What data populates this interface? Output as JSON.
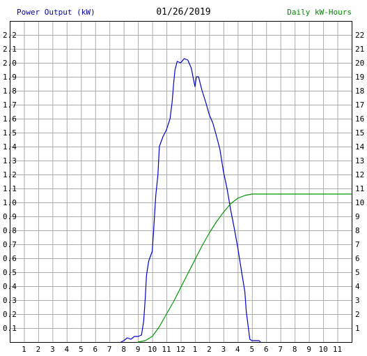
{
  "chart_data": {
    "type": "line",
    "title": "01/26/2019",
    "left_axis_label": "Power Output (kW)",
    "right_axis_label": "Daily kW-Hours",
    "left_axis": {
      "ylim": [
        0,
        2.3
      ],
      "ticks": [
        "0.1",
        "0.2",
        "0.3",
        "0.4",
        "0.5",
        "0.6",
        "0.7",
        "0.8",
        "0.9",
        "1.0",
        "1.1",
        "1.2",
        "1.3",
        "1.4",
        "1.5",
        "1.6",
        "1.7",
        "1.8",
        "1.9",
        "2.0",
        "2.1",
        "2.2"
      ]
    },
    "right_axis": {
      "ylim": [
        0,
        23
      ],
      "ticks": [
        "1",
        "2",
        "3",
        "4",
        "5",
        "6",
        "7",
        "8",
        "9",
        "10",
        "11",
        "12",
        "13",
        "14",
        "15",
        "16",
        "17",
        "18",
        "19",
        "20",
        "21",
        "22"
      ]
    },
    "x_axis": {
      "xlim": [
        0,
        24
      ],
      "tick_labels": [
        "1",
        "2",
        "3",
        "4",
        "5",
        "6",
        "7",
        "8",
        "9",
        "10",
        "11",
        "12",
        "1",
        "2",
        "3",
        "4",
        "5",
        "6",
        "7",
        "8",
        "9",
        "10",
        "11"
      ]
    },
    "grid": true,
    "series": [
      {
        "axis": "left",
        "color": "#0000cc",
        "points": [
          [
            7.8,
            0
          ],
          [
            8.0,
            0.01
          ],
          [
            8.25,
            0.03
          ],
          [
            8.5,
            0.02
          ],
          [
            8.75,
            0.04
          ],
          [
            9.0,
            0.04
          ],
          [
            9.25,
            0.05
          ],
          [
            9.4,
            0.15
          ],
          [
            9.5,
            0.3
          ],
          [
            9.6,
            0.48
          ],
          [
            9.75,
            0.58
          ],
          [
            10.0,
            0.65
          ],
          [
            10.1,
            0.8
          ],
          [
            10.25,
            1.05
          ],
          [
            10.4,
            1.2
          ],
          [
            10.5,
            1.4
          ],
          [
            10.75,
            1.47
          ],
          [
            11.0,
            1.52
          ],
          [
            11.25,
            1.6
          ],
          [
            11.4,
            1.72
          ],
          [
            11.5,
            1.85
          ],
          [
            11.6,
            1.95
          ],
          [
            11.75,
            2.01
          ],
          [
            12.0,
            2.0
          ],
          [
            12.25,
            2.03
          ],
          [
            12.5,
            2.02
          ],
          [
            12.75,
            1.96
          ],
          [
            12.9,
            1.88
          ],
          [
            13.0,
            1.83
          ],
          [
            13.1,
            1.9
          ],
          [
            13.25,
            1.9
          ],
          [
            13.4,
            1.84
          ],
          [
            13.5,
            1.8
          ],
          [
            13.75,
            1.72
          ],
          [
            14.0,
            1.63
          ],
          [
            14.25,
            1.57
          ],
          [
            14.5,
            1.48
          ],
          [
            14.75,
            1.38
          ],
          [
            15.0,
            1.22
          ],
          [
            15.25,
            1.1
          ],
          [
            15.5,
            0.95
          ],
          [
            15.75,
            0.82
          ],
          [
            16.0,
            0.68
          ],
          [
            16.25,
            0.52
          ],
          [
            16.5,
            0.36
          ],
          [
            16.6,
            0.22
          ],
          [
            16.75,
            0.1
          ],
          [
            16.85,
            0.02
          ],
          [
            17.0,
            0.01
          ],
          [
            17.5,
            0.01
          ],
          [
            17.6,
            0
          ]
        ]
      },
      {
        "axis": "right",
        "color": "#009900",
        "points": [
          [
            9.0,
            0
          ],
          [
            9.5,
            0.1
          ],
          [
            10.0,
            0.4
          ],
          [
            10.5,
            1.1
          ],
          [
            11.0,
            2.0
          ],
          [
            11.5,
            2.9
          ],
          [
            12.0,
            3.9
          ],
          [
            12.5,
            4.9
          ],
          [
            13.0,
            5.9
          ],
          [
            13.5,
            6.9
          ],
          [
            14.0,
            7.8
          ],
          [
            14.5,
            8.6
          ],
          [
            15.0,
            9.3
          ],
          [
            15.5,
            9.9
          ],
          [
            16.0,
            10.3
          ],
          [
            16.5,
            10.5
          ],
          [
            17.0,
            10.6
          ],
          [
            24.0,
            10.6
          ]
        ]
      }
    ]
  },
  "colors": {
    "left_label": "#0000aa",
    "right_label": "#008800",
    "title": "#000000",
    "grid": "#aaaaaa",
    "tick_text": "#000000"
  }
}
